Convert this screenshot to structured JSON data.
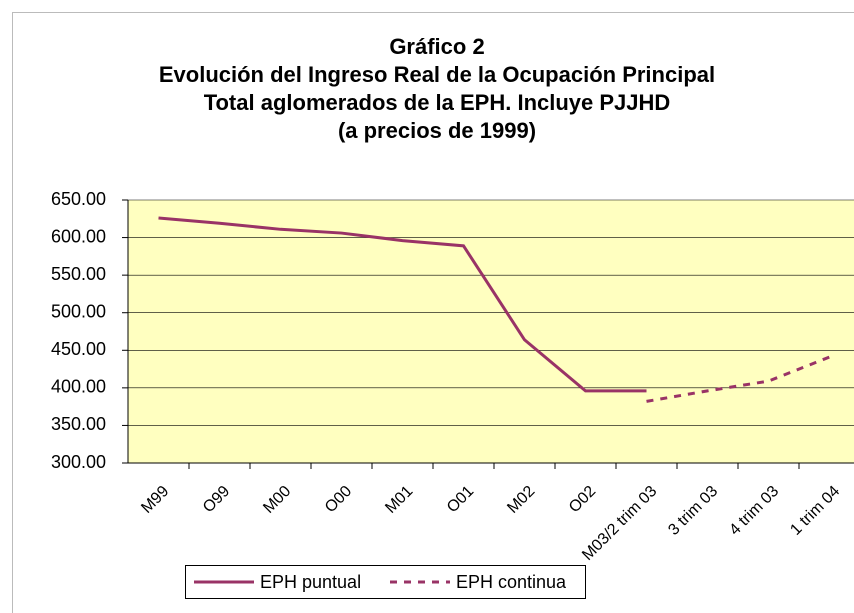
{
  "chart_data": {
    "type": "line",
    "title": [
      "Gráfico 2",
      "Evolución del Ingreso Real de la Ocupación Principal",
      "Total aglomerados de la EPH. Incluye PJJHD",
      "(a precios de 1999)"
    ],
    "categories": [
      "M99",
      "O99",
      "M00",
      "O00",
      "M01",
      "O01",
      "M02",
      "O02",
      "M03/2 trim 03",
      "3 trim 03",
      "4 trim 03",
      "1 trim 04"
    ],
    "series": [
      {
        "name": "EPH puntual",
        "color": "#993366",
        "dash": false,
        "values": [
          626,
          619,
          611,
          606,
          596,
          589,
          464,
          396,
          396,
          null,
          null,
          null
        ]
      },
      {
        "name": "EPH continua",
        "color": "#993366",
        "dash": true,
        "values": [
          null,
          null,
          null,
          null,
          null,
          null,
          null,
          null,
          382,
          396,
          409,
          441
        ]
      }
    ],
    "ylim": [
      300,
      650
    ],
    "yticks": [
      {
        "value": 300,
        "label": "300.00"
      },
      {
        "value": 350,
        "label": "350.00"
      },
      {
        "value": 400,
        "label": "400.00"
      },
      {
        "value": 450,
        "label": "450.00"
      },
      {
        "value": 500,
        "label": "500.00"
      },
      {
        "value": 550,
        "label": "550.00"
      },
      {
        "value": 600,
        "label": "600.00"
      },
      {
        "value": 650,
        "label": "650.00"
      }
    ],
    "grid": true,
    "legend": "bottom"
  }
}
